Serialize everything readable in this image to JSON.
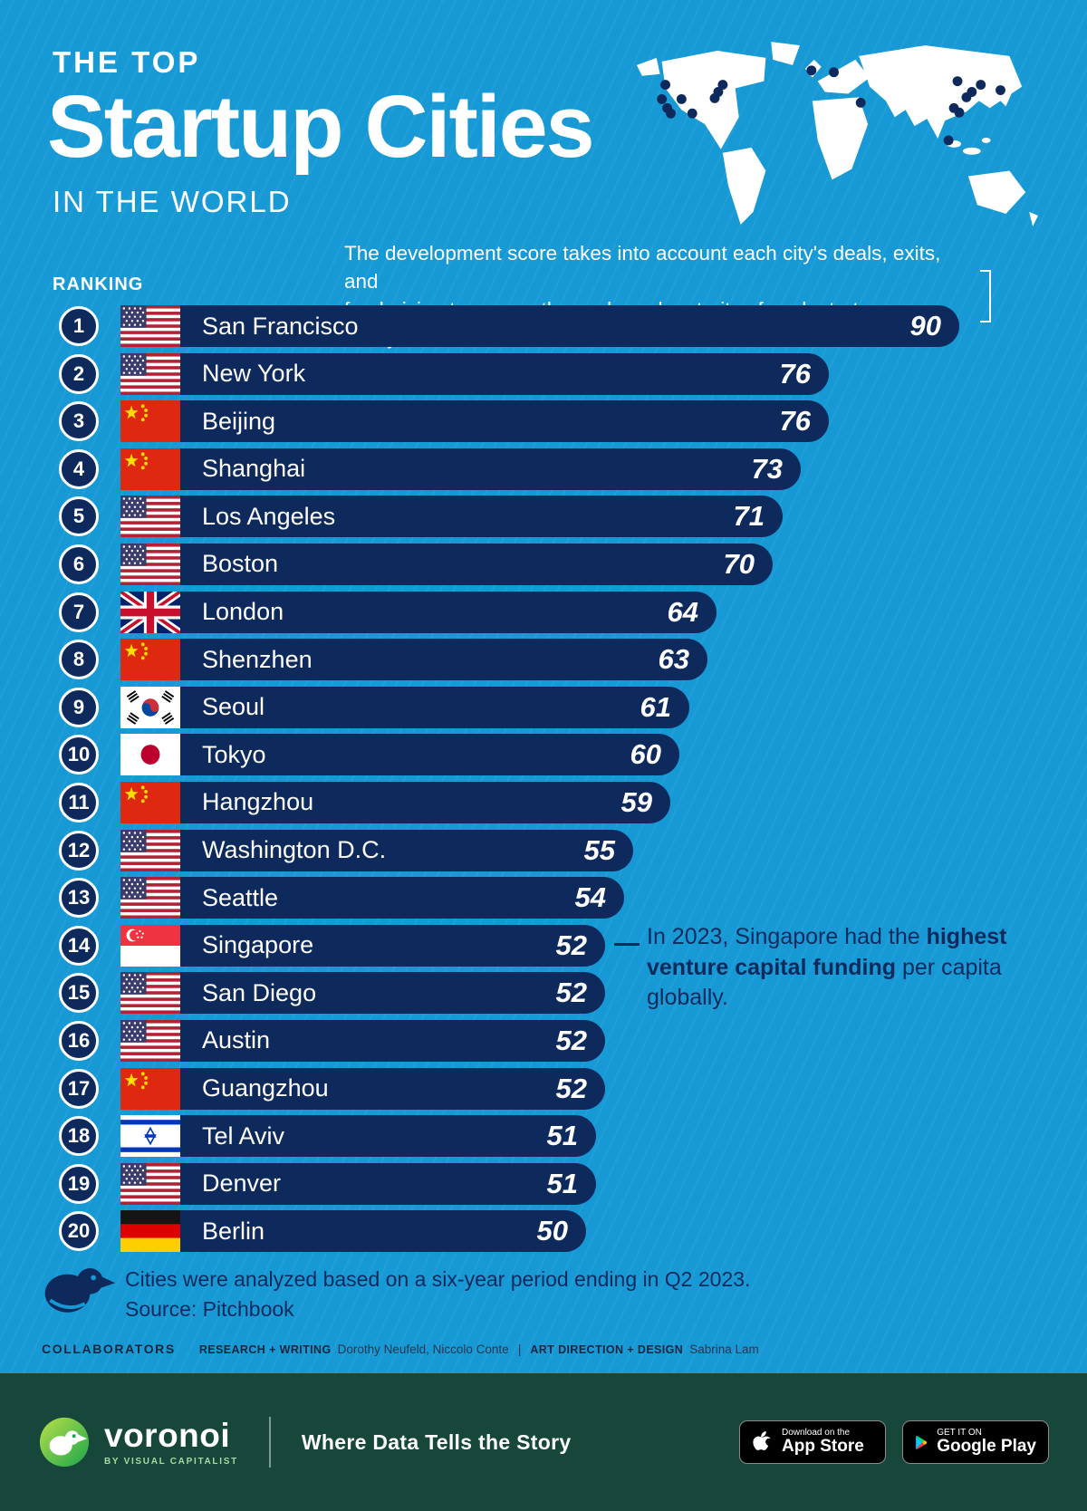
{
  "header": {
    "kicker": "THE TOP",
    "title": "Startup Cities",
    "subtitle": "IN THE WORLD",
    "description_line1": "The development score takes into account each city's deals, exits, and",
    "description_line2": "fundraising to assess the scale and maturity of each startup ecosystem.",
    "ranking_label": "RANKING"
  },
  "chart_data": {
    "type": "bar",
    "title": "The Top Startup Cities in the World",
    "xlabel": "Development score",
    "ylabel": "City",
    "xlim": [
      0,
      90
    ],
    "grid": false,
    "legend": "none",
    "ranks": [
      1,
      2,
      3,
      4,
      5,
      6,
      7,
      8,
      9,
      10,
      11,
      12,
      13,
      14,
      15,
      16,
      17,
      18,
      19,
      20
    ],
    "categories": [
      "San Francisco",
      "New York",
      "Beijing",
      "Shanghai",
      "Los Angeles",
      "Boston",
      "London",
      "Shenzhen",
      "Seoul",
      "Tokyo",
      "Hangzhou",
      "Washington D.C.",
      "Seattle",
      "Singapore",
      "San Diego",
      "Austin",
      "Guangzhou",
      "Tel Aviv",
      "Denver",
      "Berlin"
    ],
    "values": [
      90,
      76,
      76,
      73,
      71,
      70,
      64,
      63,
      61,
      60,
      59,
      55,
      54,
      52,
      52,
      52,
      52,
      51,
      51,
      50
    ],
    "countries": [
      "us",
      "us",
      "cn",
      "cn",
      "us",
      "us",
      "gb",
      "cn",
      "kr",
      "jp",
      "cn",
      "us",
      "us",
      "sg",
      "us",
      "us",
      "cn",
      "il",
      "us",
      "de"
    ]
  },
  "annotation": {
    "line1": "In 2023, Singapore had the",
    "line2_bold": "highest venture capital funding",
    "line3": "per capita globally."
  },
  "notes": {
    "line1": "Cities were analyzed based on a six-year period ending in Q2 2023.",
    "line2": "Source: Pitchbook"
  },
  "collaborators": {
    "label": "COLLABORATORS",
    "research_label": "RESEARCH + WRITING",
    "research_names": "Dorothy Neufeld, Niccolo Conte",
    "separator": "|",
    "design_label": "ART DIRECTION + DESIGN",
    "design_names": "Sabrina Lam"
  },
  "footer": {
    "brand": "voronoi",
    "brand_sub": "BY VISUAL CAPITALIST",
    "tagline": "Where Data Tells the Story",
    "app_store_small": "Download on the",
    "app_store_big": "App Store",
    "google_play_small": "GET IT ON",
    "google_play_big": "Google Play"
  },
  "icons": {
    "world_map": "world-map",
    "city_dots": "city-dot-markers",
    "bird": "voronoi-bird-icon",
    "apple": "apple-icon",
    "play": "google-play-triangle-icon"
  },
  "colors": {
    "background": "#1699d4",
    "bar_navy": "#0e2a5c",
    "footer_green": "#17473b",
    "logo_green": "#1ba64b",
    "text_white": "#ffffff"
  }
}
